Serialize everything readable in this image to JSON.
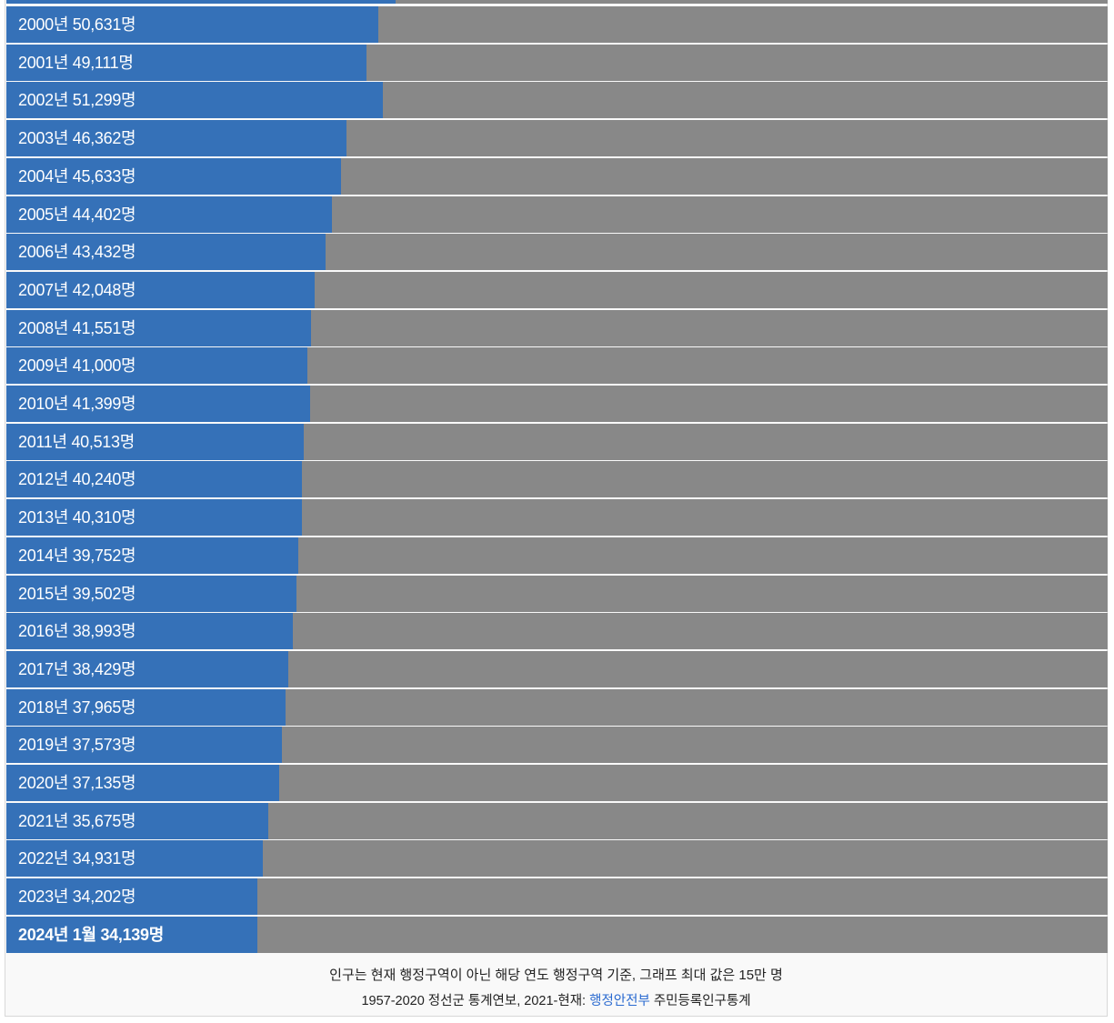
{
  "chart_data": {
    "type": "bar",
    "orientation": "horizontal",
    "max_value": 150000,
    "colors": {
      "bar": "#3571b8",
      "track": "#888888",
      "link": "#2a6ad0"
    },
    "rows": [
      {
        "label": "",
        "value": 53000,
        "partial": true
      },
      {
        "label": "2000년 50,631명",
        "value": 50631
      },
      {
        "label": "2001년 49,111명",
        "value": 49111
      },
      {
        "label": "2002년 51,299명",
        "value": 51299
      },
      {
        "label": "2003년 46,362명",
        "value": 46362
      },
      {
        "label": "2004년 45,633명",
        "value": 45633
      },
      {
        "label": "2005년 44,402명",
        "value": 44402
      },
      {
        "label": "2006년 43,432명",
        "value": 43432
      },
      {
        "label": "2007년 42,048명",
        "value": 42048
      },
      {
        "label": "2008년 41,551명",
        "value": 41551
      },
      {
        "label": "2009년 41,000명",
        "value": 41000
      },
      {
        "label": "2010년 41,399명",
        "value": 41399
      },
      {
        "label": "2011년 40,513명",
        "value": 40513
      },
      {
        "label": "2012년 40,240명",
        "value": 40240
      },
      {
        "label": "2013년 40,310명",
        "value": 40310
      },
      {
        "label": "2014년 39,752명",
        "value": 39752
      },
      {
        "label": "2015년 39,502명",
        "value": 39502
      },
      {
        "label": "2016년 38,993명",
        "value": 38993
      },
      {
        "label": "2017년 38,429명",
        "value": 38429
      },
      {
        "label": "2018년 37,965명",
        "value": 37965
      },
      {
        "label": "2019년 37,573명",
        "value": 37573
      },
      {
        "label": "2020년 37,135명",
        "value": 37135
      },
      {
        "label": "2021년 35,675명",
        "value": 35675
      },
      {
        "label": "2022년 34,931명",
        "value": 34931
      },
      {
        "label": "2023년 34,202명",
        "value": 34202
      },
      {
        "label": "2024년 1월 34,139명",
        "value": 34139,
        "bold": true
      }
    ]
  },
  "caption": {
    "line1": "인구는 현재 행정구역이 아닌 해당 연도 행정구역 기준, 그래프 최대 값은 15만 명",
    "line2_prefix": "1957-2020 정선군 통계연보, 2021-현재: ",
    "line2_link": "행정안전부",
    "line2_suffix": " 주민등록인구통계"
  }
}
